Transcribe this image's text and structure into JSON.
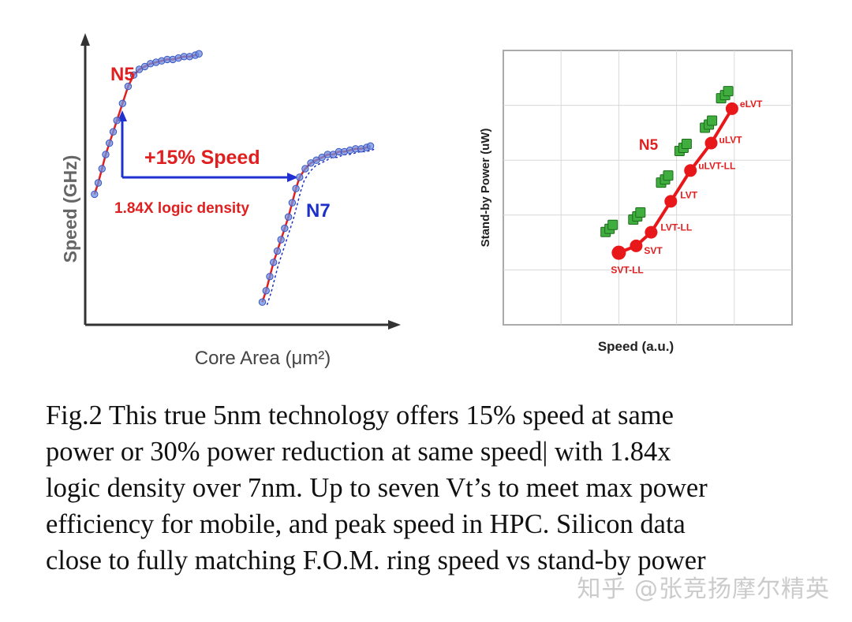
{
  "chart_data": [
    {
      "type": "scatter",
      "title": "",
      "xlabel": "Core Area (μm²)",
      "ylabel": "Speed (GHz)",
      "series": [
        {
          "name": "N5",
          "color": "#e02020",
          "point_color": "#6f8fe0",
          "x": [
            0.1,
            0.14,
            0.18,
            0.22,
            0.26,
            0.3,
            0.34,
            0.4,
            0.46,
            0.52,
            0.58,
            0.64,
            0.7,
            0.76,
            0.82,
            0.88,
            0.94,
            1.0,
            1.06,
            1.12,
            1.18,
            1.22
          ],
          "y": [
            0.46,
            0.5,
            0.55,
            0.6,
            0.64,
            0.68,
            0.72,
            0.78,
            0.84,
            0.88,
            0.9,
            0.91,
            0.92,
            0.925,
            0.93,
            0.935,
            0.935,
            0.94,
            0.945,
            0.945,
            0.95,
            0.955
          ]
        },
        {
          "name": "N7",
          "color": "#e02020",
          "point_color": "#6f8fe0",
          "x": [
            1.9,
            1.94,
            1.98,
            2.02,
            2.06,
            2.1,
            2.14,
            2.18,
            2.22,
            2.26,
            2.3,
            2.36,
            2.42,
            2.48,
            2.54,
            2.6,
            2.66,
            2.72,
            2.78,
            2.84,
            2.9,
            2.96,
            3.02,
            3.06
          ],
          "y": [
            0.08,
            0.12,
            0.17,
            0.22,
            0.26,
            0.3,
            0.34,
            0.38,
            0.43,
            0.48,
            0.52,
            0.55,
            0.57,
            0.58,
            0.59,
            0.6,
            0.6,
            0.61,
            0.61,
            0.615,
            0.62,
            0.62,
            0.625,
            0.63
          ]
        }
      ],
      "annotations": {
        "n5_label": "N5",
        "n7_label": "N7",
        "speed_gain": "+15% Speed",
        "density_gain": "1.84X logic density"
      },
      "xlim": [
        0,
        3.3
      ],
      "ylim": [
        0,
        1.0
      ],
      "grid": false
    },
    {
      "type": "line",
      "title": "N5",
      "xlabel": "Speed (a.u.)",
      "ylabel": "Stand-by Power  (uW)",
      "series": [
        {
          "name": "N5",
          "color": "#e8171a",
          "labels": [
            "SVT-LL",
            "SVT",
            "LVT-LL",
            "LVT",
            "uLVT-LL",
            "uLVT",
            "eLVT"
          ],
          "x": [
            1.0,
            1.15,
            1.28,
            1.45,
            1.62,
            1.8,
            1.98
          ],
          "y": [
            1.05,
            1.15,
            1.35,
            1.8,
            2.25,
            2.65,
            3.15
          ]
        },
        {
          "name": "Silicon data",
          "color": "#3aa33a",
          "x": [
            0.92,
            1.16,
            1.4,
            1.56,
            1.78,
            1.92
          ],
          "y": [
            1.4,
            1.58,
            2.12,
            2.58,
            2.92,
            3.35
          ]
        }
      ],
      "xlim": [
        0,
        2.5
      ],
      "ylim": [
        0,
        4.0
      ],
      "grid": true
    }
  ],
  "caption": {
    "lines": [
      "Fig.2 This true 5nm technology offers 15% speed at same",
      "power or 30% power reduction at same speed| with 1.84x",
      "logic density over 7nm.  Up to seven Vt’s to meet max power",
      "efficiency  for mobile, and peak speed in HPC.  Silicon data",
      "close to fully matching F.O.M. ring speed vs stand-by power"
    ]
  },
  "watermark": "知乎 @张竞扬摩尔精英"
}
